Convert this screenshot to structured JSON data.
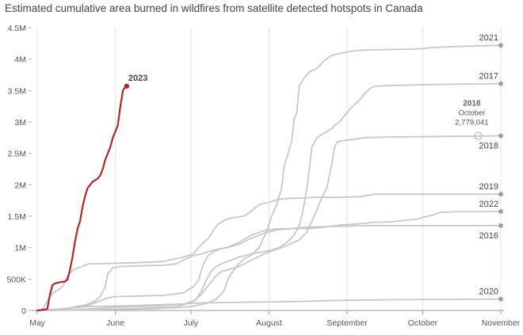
{
  "chart_data": {
    "type": "line",
    "title": "Estimated cumulative area burned in wildfires from satellite detected hotspots in Canada",
    "xlabel": "",
    "ylabel": "",
    "x_axis": {
      "ticks": [
        {
          "day": 0,
          "label": "May"
        },
        {
          "day": 31,
          "label": "June"
        },
        {
          "day": 61,
          "label": "July"
        },
        {
          "day": 92,
          "label": "August"
        },
        {
          "day": 123,
          "label": "September"
        },
        {
          "day": 153,
          "label": "October"
        },
        {
          "day": 184,
          "label": "November"
        }
      ],
      "range": [
        0,
        184
      ]
    },
    "y_axis": {
      "ticks": [
        {
          "value": 0,
          "label": "0"
        },
        {
          "value": 500000,
          "label": "500K"
        },
        {
          "value": 1000000,
          "label": "1M"
        },
        {
          "value": 1500000,
          "label": "1.5M"
        },
        {
          "value": 2000000,
          "label": "2M"
        },
        {
          "value": 2500000,
          "label": "2.5M"
        },
        {
          "value": 3000000,
          "label": "3M"
        },
        {
          "value": 3500000,
          "label": "3.5M"
        },
        {
          "value": 4000000,
          "label": "4M"
        },
        {
          "value": 4500000,
          "label": "4.5M"
        }
      ],
      "range": [
        0,
        4500000
      ]
    },
    "grid": "vertical",
    "colors": {
      "highlight": "#b5262b",
      "other": "#c8c8c8",
      "end_dot": "#a0a0a0",
      "label": "#444444"
    },
    "series": [
      {
        "name": "2021",
        "highlight": false,
        "points": [
          [
            0,
            0
          ],
          [
            10,
            2000
          ],
          [
            25,
            10000
          ],
          [
            45,
            25000
          ],
          [
            55,
            45000
          ],
          [
            61,
            60000
          ],
          [
            67,
            110000
          ],
          [
            71,
            180000
          ],
          [
            74,
            300000
          ],
          [
            76,
            520000
          ],
          [
            79,
            700000
          ],
          [
            82,
            820000
          ],
          [
            85,
            880000
          ],
          [
            88,
            1000000
          ],
          [
            91,
            1250000
          ],
          [
            93,
            1500000
          ],
          [
            95,
            1680000
          ],
          [
            97,
            1950000
          ],
          [
            98,
            2300000
          ],
          [
            100,
            2550000
          ],
          [
            101,
            2700000
          ],
          [
            102,
            3050000
          ],
          [
            103,
            3150000
          ],
          [
            104,
            3580000
          ],
          [
            106,
            3700000
          ],
          [
            108,
            3800000
          ],
          [
            111,
            3850000
          ],
          [
            114,
            3980000
          ],
          [
            117,
            4060000
          ],
          [
            120,
            4090000
          ],
          [
            124,
            4120000
          ],
          [
            127,
            4140000
          ],
          [
            135,
            4150000
          ],
          [
            150,
            4160000
          ],
          [
            156,
            4180000
          ],
          [
            165,
            4200000
          ],
          [
            175,
            4210000
          ],
          [
            184,
            4220000
          ]
        ],
        "label_anchor": "end-above"
      },
      {
        "name": "2017",
        "highlight": false,
        "points": [
          [
            0,
            0
          ],
          [
            20,
            10000
          ],
          [
            40,
            30000
          ],
          [
            55,
            60000
          ],
          [
            60,
            110000
          ],
          [
            63,
            170000
          ],
          [
            65,
            300000
          ],
          [
            67,
            470000
          ],
          [
            69,
            620000
          ],
          [
            71,
            700000
          ],
          [
            74,
            760000
          ],
          [
            77,
            800000
          ],
          [
            80,
            850000
          ],
          [
            83,
            880000
          ],
          [
            86,
            910000
          ],
          [
            89,
            930000
          ],
          [
            92,
            950000
          ],
          [
            96,
            1000000
          ],
          [
            99,
            1080000
          ],
          [
            102,
            1200000
          ],
          [
            104,
            1350000
          ],
          [
            105,
            1500000
          ],
          [
            106,
            1700000
          ],
          [
            107,
            1950000
          ],
          [
            108,
            2250000
          ],
          [
            109,
            2600000
          ],
          [
            111,
            2750000
          ],
          [
            113,
            2800000
          ],
          [
            115,
            2850000
          ],
          [
            117,
            2900000
          ],
          [
            118,
            2950000
          ],
          [
            120,
            3000000
          ],
          [
            122,
            3100000
          ],
          [
            124,
            3200000
          ],
          [
            126,
            3280000
          ],
          [
            128,
            3350000
          ],
          [
            130,
            3450000
          ],
          [
            132,
            3530000
          ],
          [
            134,
            3570000
          ],
          [
            140,
            3580000
          ],
          [
            150,
            3590000
          ],
          [
            165,
            3600000
          ],
          [
            184,
            3610000
          ]
        ],
        "label_anchor": "end-above"
      },
      {
        "name": "2018",
        "highlight": false,
        "points": [
          [
            0,
            0
          ],
          [
            10,
            5000
          ],
          [
            20,
            20000
          ],
          [
            30,
            50000
          ],
          [
            40,
            60000
          ],
          [
            50,
            80000
          ],
          [
            58,
            100000
          ],
          [
            62,
            150000
          ],
          [
            65,
            250000
          ],
          [
            67,
            350000
          ],
          [
            69,
            450000
          ],
          [
            71,
            550000
          ],
          [
            73,
            620000
          ],
          [
            76,
            650000
          ],
          [
            80,
            700000
          ],
          [
            85,
            800000
          ],
          [
            90,
            900000
          ],
          [
            94,
            960000
          ],
          [
            97,
            1000000
          ],
          [
            100,
            1050000
          ],
          [
            104,
            1120000
          ],
          [
            107,
            1250000
          ],
          [
            109,
            1420000
          ],
          [
            111,
            1600000
          ],
          [
            113,
            1800000
          ],
          [
            115,
            1950000
          ],
          [
            116,
            2150000
          ],
          [
            117,
            2350000
          ],
          [
            118,
            2600000
          ],
          [
            119,
            2680000
          ],
          [
            121,
            2700000
          ],
          [
            125,
            2720000
          ],
          [
            130,
            2750000
          ],
          [
            140,
            2760000
          ],
          [
            165,
            2770000
          ],
          [
            184,
            2779041
          ]
        ],
        "label_anchor": "end-below"
      },
      {
        "name": "2019",
        "highlight": false,
        "points": [
          [
            0,
            0
          ],
          [
            2,
            5000
          ],
          [
            4,
            150000
          ],
          [
            6,
            270000
          ],
          [
            8,
            320000
          ],
          [
            10,
            380000
          ],
          [
            12,
            550000
          ],
          [
            14,
            640000
          ],
          [
            16,
            680000
          ],
          [
            18,
            700000
          ],
          [
            20,
            740000
          ],
          [
            25,
            745000
          ],
          [
            30,
            750000
          ],
          [
            40,
            760000
          ],
          [
            50,
            780000
          ],
          [
            58,
            850000
          ],
          [
            62,
            900000
          ],
          [
            64,
            1000000
          ],
          [
            66,
            1080000
          ],
          [
            68,
            1150000
          ],
          [
            70,
            1280000
          ],
          [
            72,
            1380000
          ],
          [
            75,
            1450000
          ],
          [
            78,
            1480000
          ],
          [
            82,
            1500000
          ],
          [
            85,
            1580000
          ],
          [
            87,
            1650000
          ],
          [
            89,
            1700000
          ],
          [
            92,
            1720000
          ],
          [
            95,
            1760000
          ],
          [
            98,
            1780000
          ],
          [
            105,
            1790000
          ],
          [
            110,
            1800000
          ],
          [
            120,
            1800000
          ],
          [
            128,
            1810000
          ],
          [
            131,
            1830000
          ],
          [
            134,
            1850000
          ],
          [
            150,
            1850000
          ],
          [
            184,
            1850000
          ]
        ],
        "label_anchor": "end-above"
      },
      {
        "name": "2022",
        "highlight": false,
        "points": [
          [
            0,
            0
          ],
          [
            10,
            5000
          ],
          [
            20,
            100000
          ],
          [
            23,
            150000
          ],
          [
            25,
            220000
          ],
          [
            27,
            380000
          ],
          [
            28,
            580000
          ],
          [
            30,
            680000
          ],
          [
            33,
            700000
          ],
          [
            40,
            710000
          ],
          [
            50,
            720000
          ],
          [
            55,
            740000
          ],
          [
            58,
            800000
          ],
          [
            61,
            860000
          ],
          [
            65,
            900000
          ],
          [
            70,
            960000
          ],
          [
            75,
            1000000
          ],
          [
            80,
            1080000
          ],
          [
            85,
            1200000
          ],
          [
            90,
            1270000
          ],
          [
            95,
            1300000
          ],
          [
            100,
            1300000
          ],
          [
            110,
            1310000
          ],
          [
            115,
            1330000
          ],
          [
            120,
            1360000
          ],
          [
            128,
            1380000
          ],
          [
            133,
            1400000
          ],
          [
            140,
            1410000
          ],
          [
            145,
            1430000
          ],
          [
            150,
            1450000
          ],
          [
            154,
            1490000
          ],
          [
            157,
            1520000
          ],
          [
            160,
            1560000
          ],
          [
            165,
            1570000
          ],
          [
            184,
            1575000
          ]
        ],
        "label_anchor": "end-above"
      },
      {
        "name": "2016",
        "highlight": false,
        "points": [
          [
            0,
            0
          ],
          [
            5,
            5000
          ],
          [
            10,
            10000
          ],
          [
            15,
            60000
          ],
          [
            20,
            80000
          ],
          [
            25,
            150000
          ],
          [
            28,
            200000
          ],
          [
            31,
            220000
          ],
          [
            40,
            230000
          ],
          [
            50,
            240000
          ],
          [
            58,
            280000
          ],
          [
            62,
            380000
          ],
          [
            64,
            480000
          ],
          [
            66,
            750000
          ],
          [
            68,
            880000
          ],
          [
            70,
            930000
          ],
          [
            72,
            970000
          ],
          [
            75,
            1000000
          ],
          [
            80,
            1050000
          ],
          [
            85,
            1150000
          ],
          [
            90,
            1230000
          ],
          [
            95,
            1280000
          ],
          [
            100,
            1300000
          ],
          [
            105,
            1320000
          ],
          [
            110,
            1330000
          ],
          [
            120,
            1340000
          ],
          [
            130,
            1350000
          ],
          [
            150,
            1350000
          ],
          [
            184,
            1350000
          ]
        ],
        "label_anchor": "end-below"
      },
      {
        "name": "2020",
        "highlight": false,
        "points": [
          [
            0,
            0
          ],
          [
            10,
            30000
          ],
          [
            20,
            60000
          ],
          [
            40,
            80000
          ],
          [
            55,
            100000
          ],
          [
            65,
            120000
          ],
          [
            80,
            130000
          ],
          [
            100,
            140000
          ],
          [
            120,
            160000
          ],
          [
            140,
            170000
          ],
          [
            160,
            175000
          ],
          [
            184,
            180000
          ]
        ],
        "label_anchor": "end-above"
      },
      {
        "name": "2023",
        "highlight": true,
        "points": [
          [
            0,
            0
          ],
          [
            4,
            20000
          ],
          [
            5,
            250000
          ],
          [
            6,
            400000
          ],
          [
            7,
            430000
          ],
          [
            9,
            450000
          ],
          [
            11,
            460000
          ],
          [
            12,
            490000
          ],
          [
            13,
            650000
          ],
          [
            14,
            850000
          ],
          [
            15,
            1100000
          ],
          [
            16,
            1300000
          ],
          [
            17,
            1420000
          ],
          [
            18,
            1650000
          ],
          [
            19,
            1820000
          ],
          [
            20,
            1950000
          ],
          [
            22,
            2050000
          ],
          [
            24,
            2100000
          ],
          [
            25,
            2150000
          ],
          [
            26,
            2250000
          ],
          [
            27,
            2400000
          ],
          [
            29,
            2600000
          ],
          [
            30,
            2750000
          ],
          [
            31,
            2850000
          ],
          [
            32,
            2950000
          ],
          [
            33,
            3250000
          ],
          [
            34,
            3500000
          ],
          [
            35,
            3560000
          ],
          [
            35.5,
            3570000
          ]
        ],
        "label_anchor": "end-above-right"
      }
    ],
    "annotation": {
      "title": "2018",
      "line1": "October",
      "line2": "2,779,041",
      "x": 175,
      "y": 2779041
    }
  }
}
